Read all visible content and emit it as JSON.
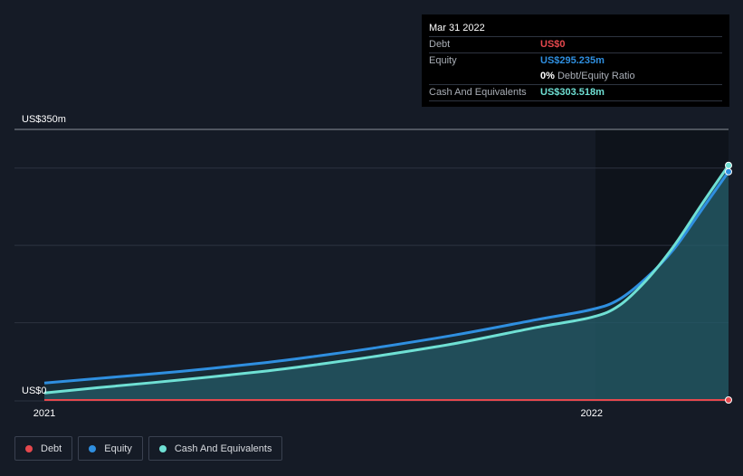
{
  "tooltip": {
    "date": "Mar 31 2022",
    "debt_label": "Debt",
    "debt_value": "US$0",
    "equity_label": "Equity",
    "equity_value": "US$295.235m",
    "ratio_value": "0%",
    "ratio_label": "Debt/Equity Ratio",
    "cash_label": "Cash And Equivalents",
    "cash_value": "US$303.518m"
  },
  "legend": [
    {
      "label": "Debt",
      "color": "#e5484d"
    },
    {
      "label": "Equity",
      "color": "#2f8fe0"
    },
    {
      "label": "Cash And Equivalents",
      "color": "#6fe0d4"
    }
  ],
  "colors": {
    "debt": "#e5484d",
    "equity": "#2f8fe0",
    "cash": "#6fe0d4",
    "area": "#245a66"
  },
  "chart_data": {
    "type": "line",
    "y_axis_top_label": "US$350m",
    "y_axis_bottom_label": "US$0",
    "ylim": [
      0,
      350
    ],
    "xlim": [
      2021.0,
      2022.25
    ],
    "x_ticks": [
      {
        "value": 2021.0,
        "label": "2021"
      },
      {
        "value": 2022.0,
        "label": "2022"
      }
    ],
    "grid": true,
    "legend_position": "bottom-left",
    "series": [
      {
        "name": "Debt",
        "x": [
          2021.0,
          2021.25,
          2021.5,
          2021.75,
          2022.0,
          2022.25
        ],
        "values": [
          0,
          0,
          0,
          0,
          0,
          0
        ]
      },
      {
        "name": "Equity",
        "x": [
          2021.0,
          2021.1,
          2021.25,
          2021.4,
          2021.5,
          2021.6,
          2021.75,
          2021.9,
          2022.0,
          2022.05,
          2022.1,
          2022.15,
          2022.2,
          2022.25
        ],
        "values": [
          22,
          28,
          37,
          48,
          57,
          67,
          84,
          104,
          117,
          130,
          158,
          195,
          245,
          295.235
        ]
      },
      {
        "name": "Cash And Equivalents",
        "x": [
          2021.0,
          2021.1,
          2021.25,
          2021.4,
          2021.5,
          2021.6,
          2021.75,
          2021.9,
          2022.0,
          2022.05,
          2022.1,
          2022.15,
          2022.2,
          2022.25
        ],
        "values": [
          9,
          16,
          26,
          37,
          46,
          56,
          73,
          94,
          107,
          122,
          155,
          199,
          252,
          303.518
        ]
      }
    ]
  }
}
